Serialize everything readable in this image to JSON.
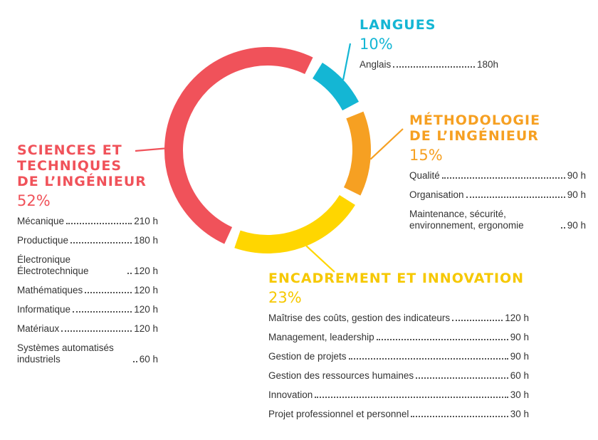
{
  "chart_data": {
    "type": "pie",
    "style": "donut",
    "segments": [
      {
        "name": "LANGUES",
        "percent_label": "10%",
        "value": 10,
        "color": "#14B6D4",
        "items": [
          {
            "name": "Anglais",
            "hours": "180h"
          }
        ]
      },
      {
        "name": "MÉTHODOLOGIE DE L’INGÉNIEUR",
        "title_lines": [
          "MÉTHODOLOGIE",
          "DE L’INGÉNIEUR"
        ],
        "percent_label": "15%",
        "value": 15,
        "color": "#F6A022",
        "items": [
          {
            "name": "Qualité",
            "hours": "90 h"
          },
          {
            "name": "Organisation",
            "hours": "90 h"
          },
          {
            "name": "Maintenance, sécurité, environnement, ergonomie",
            "hours": "90 h"
          }
        ]
      },
      {
        "name": "ENCADREMENT ET INNOVATION",
        "title_lines": [
          "ENCADREMENT ET INNOVATION"
        ],
        "percent_label": "23%",
        "value": 23,
        "color": "#FFD600",
        "items": [
          {
            "name": "Maîtrise des coûts, gestion des indicateurs",
            "hours": "120 h"
          },
          {
            "name": "Management, leadership",
            "hours": "90 h"
          },
          {
            "name": "Gestion de projets",
            "hours": "90 h"
          },
          {
            "name": "Gestion des ressources humaines",
            "hours": "60 h"
          },
          {
            "name": "Innovation",
            "hours": "30 h"
          },
          {
            "name": "Projet professionnel et personnel",
            "hours": "30 h"
          }
        ]
      },
      {
        "name": "SCIENCES ET TECHNIQUES DE L’INGÉNIEUR",
        "title_lines": [
          "SCIENCES ET",
          "TECHNIQUES",
          "DE L’INGÉNIEUR"
        ],
        "percent_label": "52%",
        "value": 52,
        "color": "#F0525A",
        "items": [
          {
            "name": "Mécanique",
            "hours": "210 h"
          },
          {
            "name": "Productique",
            "hours": "180 h"
          },
          {
            "name": "Électronique Électrotechnique",
            "hours": "120 h"
          },
          {
            "name": "Mathématiques",
            "hours": "120 h"
          },
          {
            "name": "Informatique",
            "hours": "120 h"
          },
          {
            "name": "Matériaux",
            "hours": "120 h"
          },
          {
            "name": "Systèmes automatisés industriels",
            "hours": "60 h"
          }
        ]
      }
    ]
  }
}
